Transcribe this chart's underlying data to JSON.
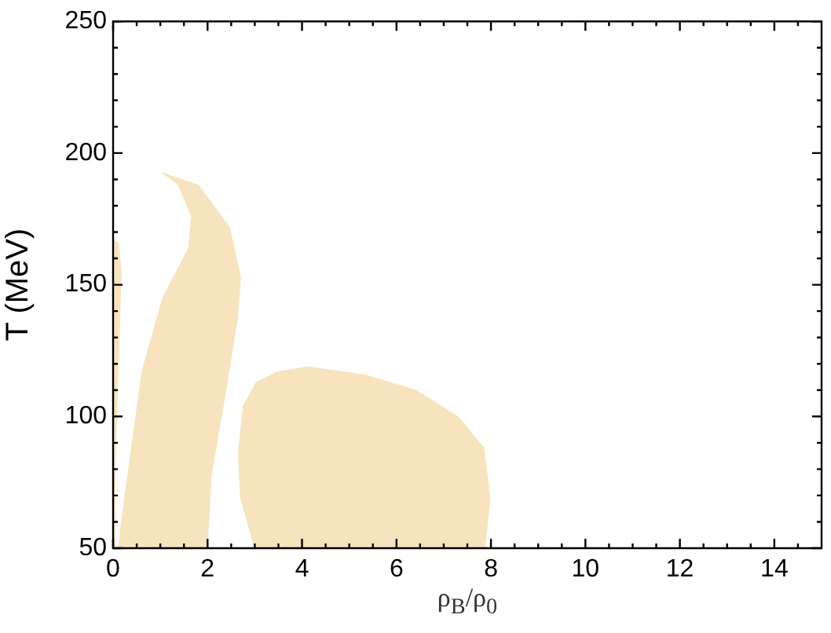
{
  "chart_data": {
    "type": "area",
    "xlabel": "ρ$_{B}$/ρ$_{0}$",
    "ylabel": "T (MeV)",
    "xlim": [
      0,
      15
    ],
    "ylim": [
      50,
      250
    ],
    "xticks": [
      0,
      {
        "value": 0.5,
        "label": null
      },
      {
        "value": 1,
        "label": null
      },
      {
        "value": 1.5,
        "label": null
      },
      2,
      {
        "value": 2.5,
        "label": null
      },
      {
        "value": 3,
        "label": null
      },
      {
        "value": 3.5,
        "label": null
      },
      4,
      {
        "value": 4.5,
        "label": null
      },
      {
        "value": 5,
        "label": null
      },
      {
        "value": 5.5,
        "label": null
      },
      6,
      {
        "value": 6.5,
        "label": null
      },
      {
        "value": 7,
        "label": null
      },
      {
        "value": 7.5,
        "label": null
      },
      8,
      {
        "value": 8.5,
        "label": null
      },
      {
        "value": 9,
        "label": null
      },
      {
        "value": 9.5,
        "label": null
      },
      10,
      {
        "value": 10.5,
        "label": null
      },
      {
        "value": 11,
        "label": null
      },
      {
        "value": 11.5,
        "label": null
      },
      12,
      {
        "value": 12.5,
        "label": null
      },
      {
        "value": 13,
        "label": null
      },
      {
        "value": 13.5,
        "label": null
      },
      14,
      {
        "value": 14.5,
        "label": null
      }
    ],
    "yticks": [
      50,
      {
        "value": 60,
        "label": null
      },
      {
        "value": 70,
        "label": null
      },
      {
        "value": 80,
        "label": null
      },
      {
        "value": 90,
        "label": null
      },
      100,
      {
        "value": 110,
        "label": null
      },
      {
        "value": 120,
        "label": null
      },
      {
        "value": 130,
        "label": null
      },
      {
        "value": 140,
        "label": null
      },
      150,
      {
        "value": 160,
        "label": null
      },
      {
        "value": 170,
        "label": null
      },
      {
        "value": 180,
        "label": null
      },
      {
        "value": 190,
        "label": null
      },
      200,
      {
        "value": 210,
        "label": null
      },
      {
        "value": 220,
        "label": null
      },
      {
        "value": 230,
        "label": null
      },
      {
        "value": 240,
        "label": null
      },
      250
    ],
    "grid": false,
    "legend": false,
    "series": [
      {
        "type": "area",
        "color": "#f7e4bf",
        "x": [
          0,
          0,
          0.12,
          0.18,
          0.12,
          0.05,
          0.05
        ],
        "values": [
          50,
          167,
          166,
          155,
          120,
          80,
          50
        ]
      },
      {
        "type": "area",
        "color": "#f7e4bf",
        "x": [
          0.11,
          0.16,
          0.6,
          1.04,
          1.59,
          1.65,
          1.37,
          0.99,
          1.81,
          2.47,
          2.71,
          2.64,
          2.36,
          2.09,
          2.0
        ],
        "values": [
          50,
          59,
          117,
          145,
          164,
          176,
          188,
          193,
          188,
          172,
          153,
          137,
          106,
          78,
          50
        ]
      },
      {
        "type": "area",
        "color": "#f7e4bf",
        "x": [
          2.99,
          2.69,
          2.64,
          2.75,
          3.02,
          3.46,
          4.12,
          5.33,
          6.43,
          7.31,
          7.86,
          7.99,
          7.88
        ],
        "values": [
          50,
          69,
          86,
          104,
          113,
          117,
          119,
          116,
          110,
          100,
          88,
          69,
          50
        ]
      }
    ]
  }
}
